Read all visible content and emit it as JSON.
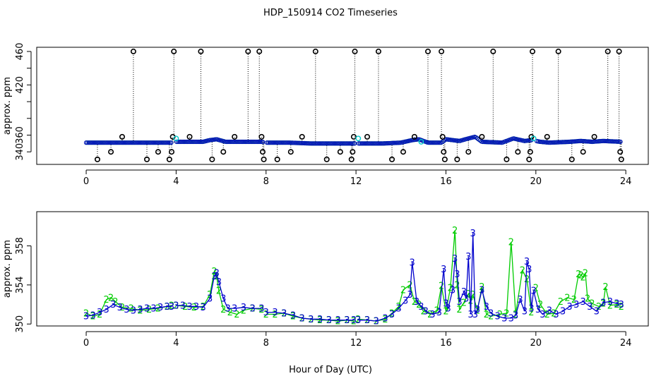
{
  "figure": {
    "title": "HDP_150914  CO2 Timeseries",
    "xlabel": "Hour of Day (UTC)"
  },
  "colors": {
    "raw_circle": "#000000",
    "cyan_circle": "#00cccc",
    "blue_series": "#0000cc",
    "green_series": "#00cc00"
  },
  "chart_data": [
    {
      "type": "scatter",
      "panel": "top",
      "xlabel": "",
      "ylabel": "approx. ppm",
      "xlim": [
        -2.2,
        25.0
      ],
      "ylim": [
        325,
        465
      ],
      "xticks": [
        0,
        4,
        8,
        12,
        16,
        20,
        24
      ],
      "yticks": [
        340,
        360,
        380,
        400,
        420,
        440,
        460
      ],
      "ytick_labels": [
        "340",
        "360",
        "420",
        "460"
      ],
      "grid": false,
      "legend": "none",
      "series": [
        {
          "marker": "open-circle",
          "color": "#000000",
          "points": [
            [
              0.5,
              331
            ],
            [
              1.1,
              340
            ],
            [
              1.6,
              358
            ],
            [
              2.1,
              460
            ],
            [
              2.7,
              331
            ],
            [
              3.2,
              340
            ],
            [
              3.7,
              331
            ],
            [
              3.8,
              340
            ],
            [
              3.85,
              358
            ],
            [
              3.9,
              460
            ],
            [
              4.6,
              358
            ],
            [
              5.1,
              460
            ],
            [
              5.6,
              331
            ],
            [
              6.1,
              340
            ],
            [
              6.6,
              358
            ],
            [
              7.2,
              460
            ],
            [
              7.7,
              460
            ],
            [
              7.8,
              358
            ],
            [
              7.85,
              340
            ],
            [
              7.9,
              331
            ],
            [
              8.5,
              331
            ],
            [
              9.1,
              340
            ],
            [
              9.6,
              358
            ],
            [
              10.2,
              460
            ],
            [
              10.7,
              331
            ],
            [
              11.3,
              340
            ],
            [
              11.8,
              331
            ],
            [
              11.85,
              340
            ],
            [
              11.9,
              358
            ],
            [
              11.95,
              460
            ],
            [
              12.5,
              358
            ],
            [
              13.0,
              460
            ],
            [
              13.6,
              331
            ],
            [
              14.1,
              340
            ],
            [
              14.6,
              358
            ],
            [
              15.2,
              460
            ],
            [
              15.8,
              460
            ],
            [
              15.85,
              358
            ],
            [
              15.9,
              340
            ],
            [
              15.95,
              331
            ],
            [
              16.5,
              331
            ],
            [
              17.0,
              340
            ],
            [
              17.6,
              358
            ],
            [
              18.1,
              460
            ],
            [
              18.7,
              331
            ],
            [
              19.2,
              340
            ],
            [
              19.7,
              331
            ],
            [
              19.75,
              340
            ],
            [
              19.8,
              358
            ],
            [
              19.85,
              460
            ],
            [
              20.5,
              358
            ],
            [
              21.0,
              460
            ],
            [
              21.6,
              331
            ],
            [
              22.1,
              340
            ],
            [
              22.6,
              358
            ],
            [
              23.2,
              460
            ],
            [
              23.7,
              460
            ],
            [
              23.75,
              340
            ],
            [
              23.8,
              331
            ]
          ]
        },
        {
          "marker": "open-circle",
          "color": "#00cccc",
          "points": [
            [
              4.0,
              356
            ],
            [
              12.1,
              356
            ],
            [
              19.9,
              356
            ],
            [
              14.9,
              352
            ]
          ]
        }
      ],
      "baseline": [
        [
          0.0,
          351
        ],
        [
          3.8,
          351
        ],
        [
          4.0,
          352
        ],
        [
          5.2,
          352
        ],
        [
          5.5,
          354
        ],
        [
          5.8,
          355
        ],
        [
          6.2,
          352
        ],
        [
          7.8,
          352
        ],
        [
          8.0,
          351
        ],
        [
          9.0,
          351
        ],
        [
          10.0,
          350
        ],
        [
          11.9,
          350
        ],
        [
          12.1,
          350
        ],
        [
          13.2,
          350
        ],
        [
          14.0,
          351
        ],
        [
          14.5,
          354
        ],
        [
          14.8,
          355
        ],
        [
          15.2,
          351
        ],
        [
          15.8,
          351
        ],
        [
          16.0,
          355
        ],
        [
          16.3,
          354
        ],
        [
          16.6,
          353
        ],
        [
          17.0,
          356
        ],
        [
          17.3,
          358
        ],
        [
          17.6,
          352
        ],
        [
          18.5,
          351
        ],
        [
          19.0,
          356
        ],
        [
          19.5,
          353
        ],
        [
          19.8,
          354
        ],
        [
          20.2,
          352
        ],
        [
          20.6,
          351
        ],
        [
          21.5,
          352
        ],
        [
          22.0,
          353
        ],
        [
          22.5,
          352
        ],
        [
          23.0,
          353
        ],
        [
          23.8,
          352
        ]
      ]
    },
    {
      "type": "line",
      "panel": "bottom",
      "xlabel": "Hour of Day (UTC)",
      "ylabel": "approx. ppm",
      "xlim": [
        -2.2,
        25.0
      ],
      "ylim": [
        349.8,
        361.5
      ],
      "xticks": [
        0,
        4,
        8,
        12,
        16,
        20,
        24
      ],
      "yticks": [
        350,
        354,
        358
      ],
      "grid": false,
      "legend": "none",
      "series": [
        {
          "marker": "3",
          "color": "#0000cc",
          "x": [
            0.0,
            0.3,
            0.6,
            0.9,
            1.2,
            1.5,
            1.8,
            2.1,
            2.4,
            2.7,
            3.0,
            3.3,
            3.6,
            3.8,
            4.0,
            4.3,
            4.6,
            4.9,
            5.2,
            5.5,
            5.7,
            5.8,
            5.9,
            6.1,
            6.3,
            6.6,
            7.0,
            7.4,
            7.8,
            8.0,
            8.4,
            8.8,
            9.2,
            9.6,
            10.0,
            10.4,
            10.8,
            11.2,
            11.6,
            11.9,
            12.1,
            12.5,
            12.9,
            13.3,
            13.6,
            13.9,
            14.2,
            14.4,
            14.5,
            14.7,
            14.9,
            15.1,
            15.4,
            15.7,
            15.9,
            16.0,
            16.1,
            16.3,
            16.4,
            16.5,
            16.6,
            16.8,
            16.9,
            17.0,
            17.1,
            17.2,
            17.3,
            17.4,
            17.6,
            17.8,
            18.0,
            18.3,
            18.6,
            18.9,
            19.1,
            19.3,
            19.5,
            19.6,
            19.7,
            19.8,
            19.9,
            20.1,
            20.3,
            20.6,
            20.9,
            21.2,
            21.5,
            21.8,
            22.1,
            22.4,
            22.7,
            23.0,
            23.3,
            23.6,
            23.8
          ],
          "values": [
            350.8,
            350.9,
            351.2,
            351.5,
            352.0,
            351.7,
            351.5,
            351.4,
            351.5,
            351.6,
            351.6,
            351.7,
            351.8,
            351.8,
            351.9,
            351.9,
            351.8,
            351.8,
            351.7,
            352.6,
            354.9,
            355.2,
            354.3,
            352.6,
            351.6,
            351.6,
            351.7,
            351.6,
            351.6,
            351.2,
            351.2,
            351.1,
            350.9,
            350.6,
            350.5,
            350.5,
            350.4,
            350.4,
            350.4,
            350.4,
            350.4,
            350.4,
            350.3,
            350.6,
            351.0,
            351.6,
            352.4,
            353.0,
            356.3,
            352.3,
            351.8,
            351.3,
            351.0,
            351.2,
            355.6,
            352.1,
            351.6,
            353.5,
            356.7,
            355.1,
            352.3,
            353.3,
            352.6,
            356.9,
            351.0,
            359.3,
            351.0,
            351.5,
            353.5,
            351.8,
            351.1,
            350.8,
            350.6,
            350.6,
            350.9,
            352.5,
            351.3,
            356.4,
            355.6,
            351.6,
            353.4,
            351.5,
            351.0,
            351.4,
            351.0,
            351.3,
            351.8,
            352.0,
            352.3,
            351.8,
            351.3,
            352.2,
            352.3,
            352.1,
            352.0
          ]
        },
        {
          "marker": "2",
          "color": "#00cc00",
          "x": [
            0.0,
            0.3,
            0.6,
            0.9,
            1.1,
            1.3,
            1.6,
            2.0,
            2.4,
            2.8,
            3.2,
            3.6,
            3.8,
            4.0,
            4.4,
            4.8,
            5.2,
            5.5,
            5.7,
            5.8,
            5.9,
            6.1,
            6.4,
            6.7,
            7.0,
            7.4,
            7.8,
            8.0,
            8.4,
            8.8,
            9.2,
            9.6,
            10.0,
            10.4,
            10.8,
            11.2,
            11.6,
            11.9,
            12.1,
            12.5,
            12.9,
            13.3,
            13.6,
            13.9,
            14.1,
            14.4,
            14.6,
            14.8,
            15.0,
            15.3,
            15.6,
            15.8,
            16.0,
            16.2,
            16.4,
            16.5,
            16.6,
            16.8,
            17.0,
            17.1,
            17.2,
            17.4,
            17.6,
            17.8,
            18.0,
            18.4,
            18.7,
            18.9,
            19.1,
            19.4,
            19.6,
            19.8,
            20.0,
            20.2,
            20.5,
            20.8,
            21.1,
            21.4,
            21.7,
            21.9,
            22.0,
            22.1,
            22.2,
            22.3,
            22.5,
            22.8,
            23.0,
            23.1,
            23.3,
            23.6,
            23.8
          ],
          "values": [
            351.1,
            350.8,
            351.0,
            352.5,
            352.7,
            352.3,
            351.7,
            351.6,
            351.4,
            351.5,
            351.6,
            351.8,
            351.9,
            351.9,
            351.8,
            351.7,
            351.8,
            353.0,
            355.4,
            354.9,
            353.4,
            351.5,
            351.2,
            351.0,
            351.4,
            351.6,
            351.5,
            351.0,
            351.0,
            351.1,
            350.8,
            350.6,
            350.5,
            350.4,
            350.4,
            350.3,
            350.4,
            350.3,
            350.5,
            350.4,
            350.3,
            350.5,
            351.1,
            351.8,
            353.5,
            354.0,
            352.3,
            352.0,
            351.3,
            351.0,
            351.4,
            353.9,
            351.3,
            353.7,
            359.6,
            354.0,
            351.5,
            352.2,
            353.1,
            352.4,
            353.0,
            351.4,
            353.8,
            351.0,
            350.8,
            351.0,
            351.1,
            358.4,
            351.0,
            355.5,
            354.6,
            351.2,
            353.7,
            352.0,
            351.0,
            351.1,
            352.3,
            352.7,
            352.5,
            355.1,
            355.0,
            354.8,
            355.2,
            352.6,
            352.1,
            351.8,
            352.1,
            353.8,
            351.9,
            352.0,
            351.8
          ]
        }
      ]
    }
  ]
}
